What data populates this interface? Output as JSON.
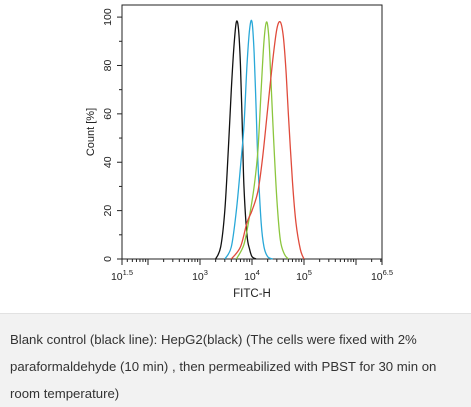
{
  "chart_data": {
    "type": "line",
    "title": "",
    "xlabel": "FITC-H",
    "ylabel": "Count [%]",
    "x_scale": "log",
    "xlim": [
      31.62,
      3162278
    ],
    "ylim": [
      0,
      105
    ],
    "x_ticks": [
      {
        "value": 31.62,
        "base": "10",
        "exp": "1.5"
      },
      {
        "value": 1000,
        "base": "10",
        "exp": "3"
      },
      {
        "value": 10000,
        "base": "10",
        "exp": "4"
      },
      {
        "value": 100000,
        "base": "10",
        "exp": "5"
      },
      {
        "value": 3162278,
        "base": "10",
        "exp": "6.5"
      }
    ],
    "y_ticks": [
      "0",
      "20",
      "40",
      "60",
      "80",
      "100"
    ],
    "grid": false,
    "legend": "none",
    "series": [
      {
        "color": "#111111",
        "x": [
          2000,
          2500,
          3000,
          3500,
          4000,
          4500,
          5000,
          5500,
          6000,
          6500,
          7000,
          8000,
          9000,
          10000,
          12000
        ],
        "y": [
          0,
          5,
          20,
          45,
          70,
          88,
          98,
          95,
          80,
          55,
          30,
          10,
          4,
          1,
          0
        ]
      },
      {
        "color": "#29a8d8",
        "x": [
          3000,
          4000,
          5000,
          6000,
          7000,
          8000,
          9000,
          10000,
          11000,
          12000,
          13000,
          15000,
          17000,
          20000,
          25000
        ],
        "y": [
          0,
          5,
          20,
          38,
          55,
          80,
          95,
          98,
          85,
          62,
          40,
          15,
          5,
          1,
          0
        ]
      },
      {
        "color": "#8cc63e",
        "x": [
          5000,
          7000,
          9000,
          11000,
          13000,
          15000,
          17000,
          19000,
          21000,
          23000,
          26000,
          30000,
          35000,
          42000,
          50000
        ],
        "y": [
          0,
          6,
          18,
          30,
          45,
          70,
          90,
          98,
          92,
          75,
          50,
          25,
          8,
          2,
          0
        ]
      },
      {
        "color": "#e04b3c",
        "x": [
          4000,
          6000,
          8000,
          10000,
          13000,
          16000,
          20000,
          25000,
          30000,
          35000,
          40000,
          45000,
          50000,
          60000,
          70000,
          85000,
          100000
        ],
        "y": [
          0,
          5,
          15,
          20,
          28,
          42,
          62,
          82,
          95,
          98,
          92,
          78,
          60,
          32,
          15,
          4,
          0
        ]
      }
    ]
  },
  "caption": {
    "text": "Blank control (black line): HepG2(black) (The cells were fixed with 2% paraformaldehyde (10 min) , then permeabilized with PBST for 30 min on room temperature)"
  }
}
